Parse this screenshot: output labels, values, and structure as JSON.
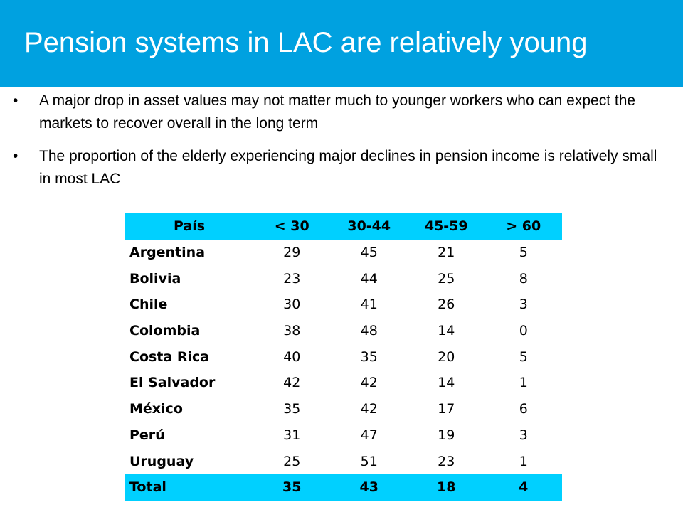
{
  "title": "Pension systems in LAC are relatively young",
  "bullets": [
    "A major drop in asset values may not matter much to younger workers who can expect the markets to recover overall in the long term",
    "The proportion of the elderly experiencing major declines in pension income is relatively small in most LAC"
  ],
  "bullet_symbol": "•",
  "colors": {
    "title_bar": "#00a1e0",
    "table_highlight": "#00d0ff"
  },
  "table": {
    "headers": [
      "País",
      "< 30",
      "30-44",
      "45-59",
      "> 60"
    ],
    "rows": [
      [
        "Argentina",
        "29",
        "45",
        "21",
        "5"
      ],
      [
        "Bolivia",
        "23",
        "44",
        "25",
        "8"
      ],
      [
        "Chile",
        "30",
        "41",
        "26",
        "3"
      ],
      [
        "Colombia",
        "38",
        "48",
        "14",
        "0"
      ],
      [
        "Costa Rica",
        "40",
        "35",
        "20",
        "5"
      ],
      [
        "El Salvador",
        "42",
        "42",
        "14",
        "1"
      ],
      [
        "México",
        "35",
        "42",
        "17",
        "6"
      ],
      [
        "Perú",
        "31",
        "47",
        "19",
        "3"
      ],
      [
        "Uruguay",
        "25",
        "51",
        "23",
        "1"
      ]
    ],
    "total": [
      "Total",
      "35",
      "43",
      "18",
      "4"
    ]
  }
}
